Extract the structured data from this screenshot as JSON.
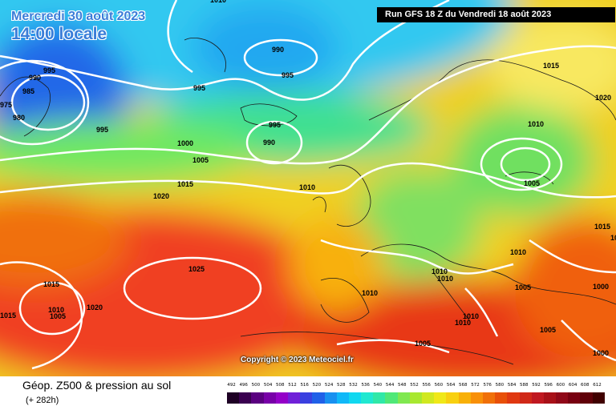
{
  "header": {
    "date": "Mercredi 30 août 2023",
    "time": "14:00 locale",
    "run": "Run GFS 18 Z du Vendredi 18 août 2023"
  },
  "footer": {
    "title": "Géop. Z500 & pression au sol",
    "lead_time": "(+ 282h)",
    "copyright": "Copyright © 2023 Meteociel.fr"
  },
  "map": {
    "isobar_labels": [
      "1010",
      "990",
      "995",
      "990",
      "995",
      "985",
      "975",
      "980",
      "995",
      "995",
      "995",
      "990",
      "1000",
      "1005",
      "1015",
      "1020",
      "1010",
      "1015",
      "1010",
      "1005",
      "1020",
      "1025",
      "1015",
      "1020",
      "1015",
      "1010",
      "1010",
      "1010",
      "1010",
      "1010",
      "1005",
      "1000",
      "1005",
      "1010",
      "1015",
      "1020",
      "1010",
      "1005",
      "1005",
      "1000"
    ],
    "surface_tint": "#ffe8a0",
    "land_color": "#3c6e1a"
  },
  "legend": {
    "labels": [
      "492",
      "496",
      "500",
      "504",
      "508",
      "512",
      "516",
      "520",
      "524",
      "528",
      "532",
      "536",
      "540",
      "544",
      "548",
      "552",
      "556",
      "560",
      "564",
      "568",
      "572",
      "576",
      "580",
      "584",
      "588",
      "592",
      "596",
      "600",
      "604",
      "608",
      "612"
    ],
    "colors": [
      "#1e0025",
      "#3a0050",
      "#5a0080",
      "#7800a8",
      "#9400c8",
      "#7020d8",
      "#3a40e0",
      "#2060e8",
      "#1890f0",
      "#10b8f8",
      "#10d8f0",
      "#20e8d0",
      "#30e8a8",
      "#50e878",
      "#80e850",
      "#a8e830",
      "#d0e820",
      "#f0e818",
      "#f8d010",
      "#f8b008",
      "#f89008",
      "#f07008",
      "#e85008",
      "#e03810",
      "#d02818",
      "#c01820",
      "#a81018",
      "#900818",
      "#780010",
      "#600008",
      "#400000"
    ]
  }
}
